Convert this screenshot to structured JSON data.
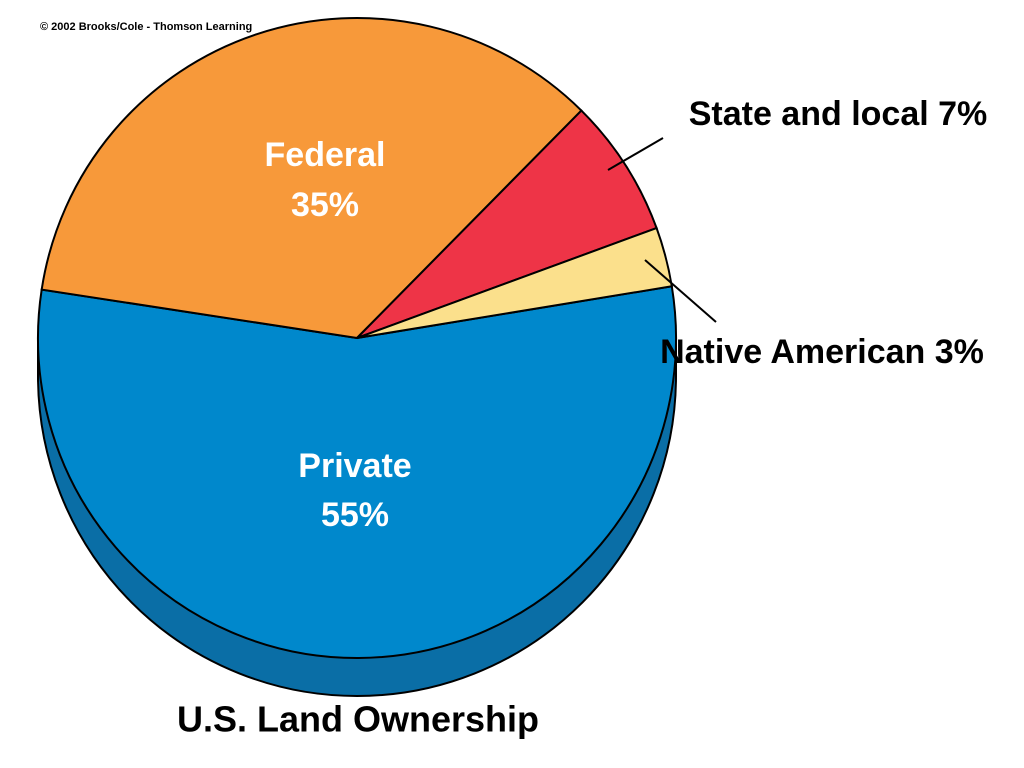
{
  "chart_data": {
    "type": "pie",
    "title": "U.S. Land Ownership",
    "credit": "© 2002 Brooks/Cole - Thomson Learning",
    "categories": [
      "Private",
      "Federal",
      "State and local",
      "Native American"
    ],
    "values": [
      55,
      35,
      7,
      3
    ],
    "value_labels": [
      "55%",
      "35%",
      "7%",
      "3%"
    ],
    "colors": [
      "#0088cc",
      "#f7993a",
      "#ee3447",
      "#fbe08c"
    ]
  }
}
